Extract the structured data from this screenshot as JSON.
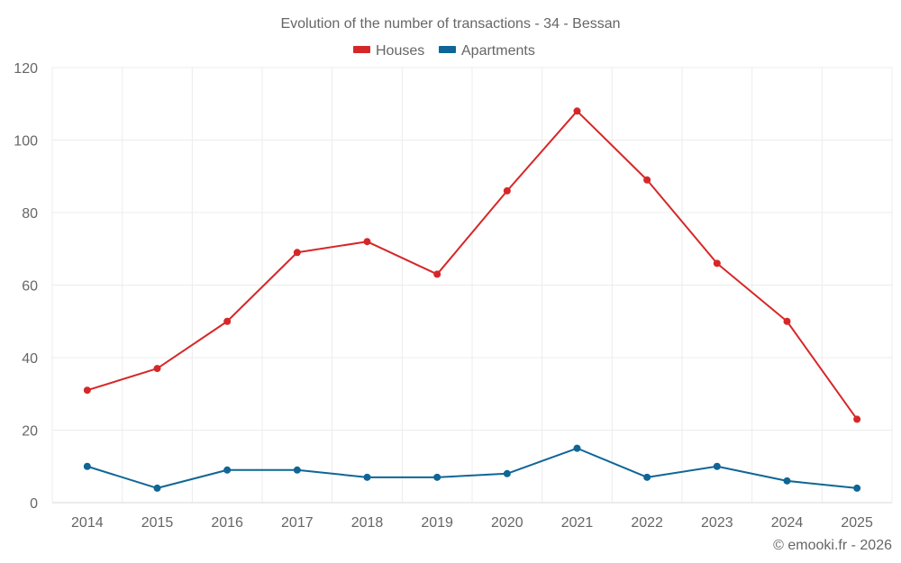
{
  "chart_data": {
    "type": "line",
    "title": "Evolution of the number of transactions - 34 - Bessan",
    "categories": [
      "2014",
      "2015",
      "2016",
      "2017",
      "2018",
      "2019",
      "2020",
      "2021",
      "2022",
      "2023",
      "2024",
      "2025"
    ],
    "series": [
      {
        "name": "Houses",
        "color": "#d62728",
        "values": [
          31,
          37,
          50,
          69,
          72,
          63,
          86,
          108,
          89,
          66,
          50,
          23
        ]
      },
      {
        "name": "Apartments",
        "color": "#0f6696",
        "values": [
          10,
          4,
          9,
          9,
          7,
          7,
          8,
          15,
          7,
          10,
          6,
          4
        ]
      }
    ],
    "ylim": [
      0,
      120
    ],
    "yticks": [
      0,
      20,
      40,
      60,
      80,
      100,
      120
    ],
    "grid": true,
    "legend_position": "top-center",
    "xlabel": "",
    "ylabel": ""
  },
  "credit": "© emooki.fr - 2026"
}
